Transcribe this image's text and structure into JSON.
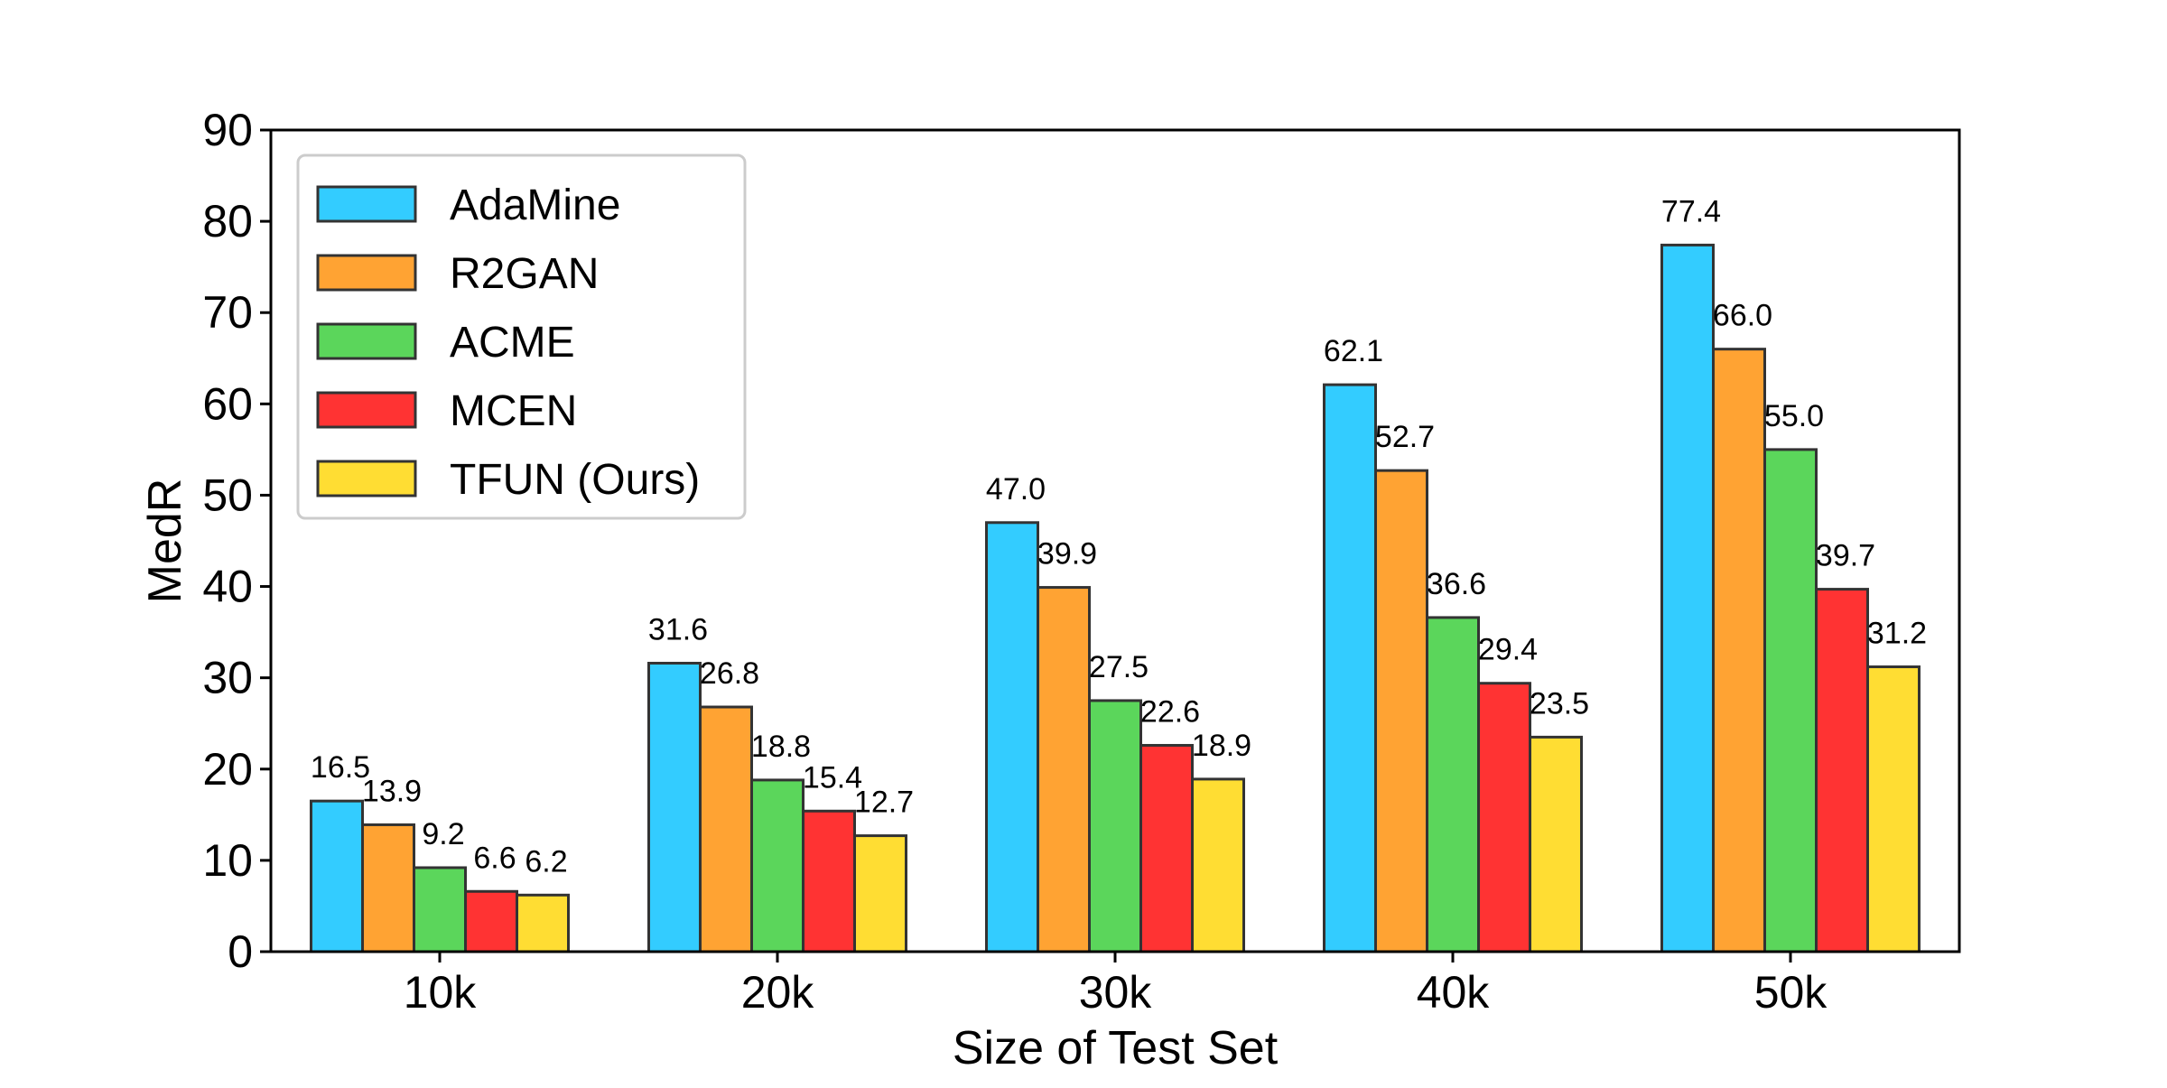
{
  "chart_data": {
    "type": "bar",
    "title": "",
    "xlabel": "Size of Test Set",
    "ylabel": "MedR",
    "ylim": [
      0,
      90
    ],
    "yticks": [
      0,
      10,
      20,
      30,
      40,
      50,
      60,
      70,
      80,
      90
    ],
    "categories": [
      "10k",
      "20k",
      "30k",
      "40k",
      "50k"
    ],
    "series": [
      {
        "name": "AdaMine",
        "color": "#33CCFF",
        "values": [
          16.5,
          31.6,
          47.0,
          62.1,
          77.4
        ],
        "labels": [
          "16.5",
          "31.6",
          "47.0",
          "62.1",
          "77.4"
        ]
      },
      {
        "name": "R2GAN",
        "color": "#FFA333",
        "values": [
          13.9,
          26.8,
          39.9,
          52.7,
          66.0
        ],
        "labels": [
          "13.9",
          "26.8",
          "39.9",
          "52.7",
          "66.0"
        ]
      },
      {
        "name": "ACME",
        "color": "#5BD65B",
        "values": [
          9.2,
          18.8,
          27.5,
          36.6,
          55.0
        ],
        "labels": [
          "9.2",
          "18.8",
          "27.5",
          "36.6",
          "55.0"
        ]
      },
      {
        "name": "MCEN",
        "color": "#FF3333",
        "values": [
          6.6,
          15.4,
          22.6,
          29.4,
          39.7
        ],
        "labels": [
          "6.6",
          "15.4",
          "22.6",
          "29.4",
          "39.7"
        ]
      },
      {
        "name": "TFUN (Ours)",
        "color": "#FFDD33",
        "values": [
          6.2,
          12.7,
          18.9,
          23.5,
          31.2
        ],
        "labels": [
          "6.2",
          "12.7",
          "18.9",
          "23.5",
          "31.2"
        ]
      }
    ],
    "grid": false,
    "legend": "top-left"
  }
}
